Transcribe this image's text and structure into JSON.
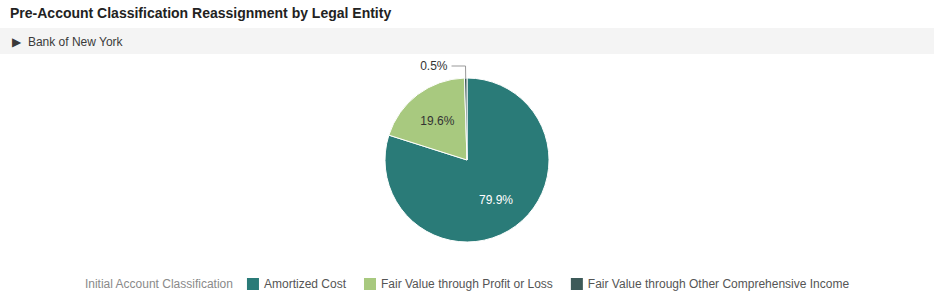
{
  "chart_data": {
    "type": "pie",
    "title": "Pre-Account Classification Reassignment by Legal Entity",
    "subtitle": "▶  Bank of New York",
    "legend_title": "Initial Account Classification",
    "categories": [
      "Amortized Cost",
      "Fair Value through Profit or Loss",
      "Fair Value through Other Comprehensive Income"
    ],
    "values": [
      79.9,
      19.6,
      0.5
    ],
    "value_labels": [
      "79.9%",
      "19.6%",
      "0.5%"
    ],
    "colors": [
      "#2a7b78",
      "#a8c97f",
      "#3d5a59"
    ],
    "data_labels": true,
    "legend": "bottom"
  }
}
